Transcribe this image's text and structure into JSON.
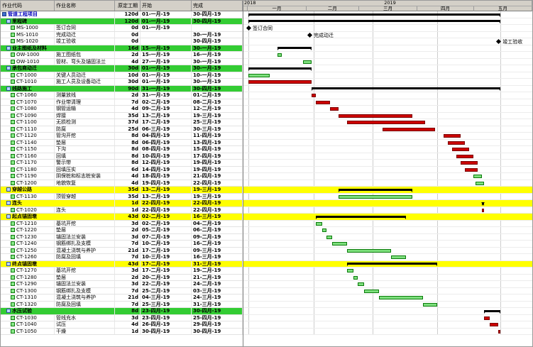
{
  "table": {
    "columns": [
      "作业代码",
      "作业名称",
      "原定工期",
      "开始",
      "完成"
    ]
  },
  "timeline": {
    "years": [
      {
        "label": "2018"
      },
      {
        "label": "2019"
      }
    ],
    "months": [
      {
        "label": "一月",
        "days": 31
      },
      {
        "label": "二月",
        "days": 28
      },
      {
        "label": "三月",
        "days": 31
      },
      {
        "label": "四月",
        "days": 30
      },
      {
        "label": "五月",
        "days": 31
      }
    ]
  },
  "colors": {
    "group_row": "#33cc33",
    "highlight_row": "#ffff00",
    "critical_bar": "#cc0000",
    "normal_bar": "#7ddf7d",
    "summary_bar": "#000000",
    "project_text": "#0000bb"
  },
  "rows": [
    {
      "type": "project",
      "name": "管道工程项目",
      "dur": "120d",
      "start": "01-一月-19",
      "finish": "30-四月-19",
      "bar": {
        "kind": "summary",
        "s": 0,
        "e": 119
      }
    },
    {
      "type": "group",
      "name": "里程碑",
      "dur": "120d",
      "start": "01-一月-19",
      "finish": "30-四月-19",
      "bar": {
        "kind": "summary",
        "s": 0,
        "e": 119
      }
    },
    {
      "type": "task",
      "id": "MS-1000",
      "name": "签订合同",
      "dur": "0d",
      "start": "01-一月-19",
      "finish": "",
      "bar": {
        "kind": "milestone",
        "s": 0,
        "label": "签订合同"
      }
    },
    {
      "type": "task",
      "id": "MS-1010",
      "name": "完成动迁",
      "dur": "0d",
      "start": "",
      "finish": "30-一月-19",
      "bar": {
        "kind": "milestone",
        "s": 29,
        "label": "完成动迁"
      }
    },
    {
      "type": "task",
      "id": "MS-1020",
      "name": "竣工验收",
      "dur": "0d",
      "start": "",
      "finish": "30-四月-19",
      "bar": {
        "kind": "milestone",
        "s": 119,
        "label": "竣工验收"
      }
    },
    {
      "type": "group",
      "name": "业主图纸及材料",
      "dur": "16d",
      "start": "15-一月-19",
      "finish": "30-一月-19",
      "bar": {
        "kind": "summary",
        "s": 14,
        "e": 29
      }
    },
    {
      "type": "task",
      "id": "OW-1000",
      "name": "施工图纸包",
      "dur": "2d",
      "start": "15-一月-19",
      "finish": "16-一月-19",
      "bar": {
        "kind": "bar",
        "color": "green",
        "s": 14,
        "e": 15
      }
    },
    {
      "type": "task",
      "id": "OW-1010",
      "name": "管材、弯头及锚固法兰",
      "dur": "4d",
      "start": "27-一月-19",
      "finish": "30-一月-19",
      "bar": {
        "kind": "bar",
        "color": "green",
        "s": 26,
        "e": 29
      }
    },
    {
      "type": "group",
      "name": "承包商动迁",
      "dur": "30d",
      "start": "01-一月-19",
      "finish": "30-一月-19",
      "bar": {
        "kind": "summary",
        "s": 0,
        "e": 29
      }
    },
    {
      "type": "task",
      "id": "CT-1000",
      "name": "关键人员动迁",
      "dur": "10d",
      "start": "01-一月-19",
      "finish": "10-一月-19",
      "bar": {
        "kind": "bar",
        "color": "green",
        "s": 0,
        "e": 9
      }
    },
    {
      "type": "task",
      "id": "CT-1010",
      "name": "施工人员及设备动迁",
      "dur": "30d",
      "start": "01-一月-19",
      "finish": "30-一月-19",
      "bar": {
        "kind": "bar",
        "color": "red",
        "s": 0,
        "e": 29
      }
    },
    {
      "type": "group",
      "name": "线路施工",
      "dur": "90d",
      "start": "31-一月-19",
      "finish": "30-四月-19",
      "bar": {
        "kind": "summary",
        "s": 30,
        "e": 119
      }
    },
    {
      "type": "task",
      "id": "CT-1060",
      "name": "测量放线",
      "dur": "2d",
      "start": "31-一月-19",
      "finish": "01-二月-19",
      "bar": {
        "kind": "bar",
        "color": "red",
        "s": 30,
        "e": 31
      }
    },
    {
      "type": "task",
      "id": "CT-1070",
      "name": "作业带清理",
      "dur": "7d",
      "start": "02-二月-19",
      "finish": "08-二月-19",
      "bar": {
        "kind": "bar",
        "color": "red",
        "s": 32,
        "e": 38
      }
    },
    {
      "type": "task",
      "id": "CT-1080",
      "name": "钢管运输",
      "dur": "4d",
      "start": "09-二月-19",
      "finish": "12-二月-19",
      "bar": {
        "kind": "bar",
        "color": "red",
        "s": 39,
        "e": 42
      }
    },
    {
      "type": "task",
      "id": "CT-1090",
      "name": "焊接",
      "dur": "35d",
      "start": "13-二月-19",
      "finish": "19-三月-19",
      "bar": {
        "kind": "bar",
        "color": "red",
        "s": 43,
        "e": 77
      }
    },
    {
      "type": "task",
      "id": "CT-1100",
      "name": "无损检测",
      "dur": "37d",
      "start": "17-二月-19",
      "finish": "25-三月-19",
      "bar": {
        "kind": "bar",
        "color": "red",
        "s": 47,
        "e": 83
      }
    },
    {
      "type": "task",
      "id": "CT-1110",
      "name": "防腐",
      "dur": "25d",
      "start": "06-三月-19",
      "finish": "30-三月-19",
      "bar": {
        "kind": "bar",
        "color": "red",
        "s": 64,
        "e": 88
      }
    },
    {
      "type": "task",
      "id": "CT-1120",
      "name": "管沟开挖",
      "dur": "8d",
      "start": "04-四月-19",
      "finish": "11-四月-19",
      "bar": {
        "kind": "bar",
        "color": "red",
        "s": 93,
        "e": 100
      }
    },
    {
      "type": "task",
      "id": "CT-1140",
      "name": "垫层",
      "dur": "8d",
      "start": "06-四月-19",
      "finish": "13-四月-19",
      "bar": {
        "kind": "bar",
        "color": "red",
        "s": 95,
        "e": 102
      }
    },
    {
      "type": "task",
      "id": "CT-1150",
      "name": "下沟",
      "dur": "8d",
      "start": "08-四月-19",
      "finish": "15-四月-19",
      "bar": {
        "kind": "bar",
        "color": "red",
        "s": 97,
        "e": 104
      }
    },
    {
      "type": "task",
      "id": "CT-1160",
      "name": "回填",
      "dur": "8d",
      "start": "10-四月-19",
      "finish": "17-四月-19",
      "bar": {
        "kind": "bar",
        "color": "red",
        "s": 99,
        "e": 106
      }
    },
    {
      "type": "task",
      "id": "CT-1170",
      "name": "警示带",
      "dur": "8d",
      "start": "12-四月-19",
      "finish": "19-四月-19",
      "bar": {
        "kind": "bar",
        "color": "red",
        "s": 101,
        "e": 108
      }
    },
    {
      "type": "task",
      "id": "CT-1180",
      "name": "回填压实",
      "dur": "6d",
      "start": "14-四月-19",
      "finish": "19-四月-19",
      "bar": {
        "kind": "bar",
        "color": "red",
        "s": 103,
        "e": 108
      }
    },
    {
      "type": "task",
      "id": "CT-1190",
      "name": "阴保桩和标志桩安装",
      "dur": "4d",
      "start": "18-四月-19",
      "finish": "21-四月-19",
      "bar": {
        "kind": "bar",
        "color": "green",
        "s": 107,
        "e": 110
      }
    },
    {
      "type": "task",
      "id": "CT-1200",
      "name": "地貌恢复",
      "dur": "4d",
      "start": "19-四月-19",
      "finish": "22-四月-19",
      "bar": {
        "kind": "bar",
        "color": "green",
        "s": 108,
        "e": 111
      }
    },
    {
      "type": "group",
      "highlight": true,
      "name": "穿越公路",
      "dur": "35d",
      "start": "13-二月-19",
      "finish": "19-三月-19",
      "bar": {
        "kind": "summary",
        "s": 43,
        "e": 77
      }
    },
    {
      "type": "task",
      "id": "CT-1130",
      "name": "顶管穿越",
      "dur": "35d",
      "start": "13-二月-19",
      "finish": "19-三月-19",
      "bar": {
        "kind": "bar",
        "color": "green",
        "s": 43,
        "e": 77
      }
    },
    {
      "type": "group",
      "highlight": true,
      "name": "连头",
      "dur": "1d",
      "start": "22-四月-19",
      "finish": "22-四月-19",
      "bar": {
        "kind": "summary",
        "s": 111,
        "e": 111
      }
    },
    {
      "type": "task",
      "id": "CT-1020",
      "name": "连头",
      "dur": "1d",
      "start": "22-四月-19",
      "finish": "22-四月-19",
      "bar": {
        "kind": "bar",
        "color": "red",
        "s": 111,
        "e": 111
      }
    },
    {
      "type": "group",
      "highlight": true,
      "name": "起点锚固墩",
      "dur": "43d",
      "start": "02-二月-19",
      "finish": "16-三月-19",
      "bar": {
        "kind": "summary",
        "s": 32,
        "e": 74
      }
    },
    {
      "type": "task",
      "id": "CT-1210",
      "name": "基坑开挖",
      "dur": "3d",
      "start": "02-二月-19",
      "finish": "04-二月-19",
      "bar": {
        "kind": "bar",
        "color": "green",
        "s": 32,
        "e": 34
      }
    },
    {
      "type": "task",
      "id": "CT-1220",
      "name": "垫层",
      "dur": "2d",
      "start": "05-二月-19",
      "finish": "06-二月-19",
      "bar": {
        "kind": "bar",
        "color": "green",
        "s": 35,
        "e": 36
      }
    },
    {
      "type": "task",
      "id": "CT-1230",
      "name": "锚固法兰安装",
      "dur": "3d",
      "start": "07-二月-19",
      "finish": "09-二月-19",
      "bar": {
        "kind": "bar",
        "color": "green",
        "s": 37,
        "e": 39
      }
    },
    {
      "type": "task",
      "id": "CT-1240",
      "name": "钢筋绑扎及支模",
      "dur": "7d",
      "start": "10-二月-19",
      "finish": "16-二月-19",
      "bar": {
        "kind": "bar",
        "color": "green",
        "s": 40,
        "e": 46
      }
    },
    {
      "type": "task",
      "id": "CT-1250",
      "name": "混凝土浇筑与养护",
      "dur": "21d",
      "start": "17-二月-19",
      "finish": "09-三月-19",
      "bar": {
        "kind": "bar",
        "color": "green",
        "s": 47,
        "e": 67
      }
    },
    {
      "type": "task",
      "id": "CT-1260",
      "name": "防腐及回填",
      "dur": "7d",
      "start": "10-三月-19",
      "finish": "16-三月-19",
      "bar": {
        "kind": "bar",
        "color": "green",
        "s": 68,
        "e": 74
      }
    },
    {
      "type": "group",
      "highlight": true,
      "name": "终点锚固墩",
      "dur": "43d",
      "start": "17-二月-19",
      "finish": "31-三月-19",
      "bar": {
        "kind": "summary",
        "s": 47,
        "e": 89
      }
    },
    {
      "type": "task",
      "id": "CT-1270",
      "name": "基坑开挖",
      "dur": "3d",
      "start": "17-二月-19",
      "finish": "19-二月-19",
      "bar": {
        "kind": "bar",
        "color": "green",
        "s": 47,
        "e": 49
      }
    },
    {
      "type": "task",
      "id": "CT-1280",
      "name": "垫层",
      "dur": "2d",
      "start": "20-二月-19",
      "finish": "21-二月-19",
      "bar": {
        "kind": "bar",
        "color": "green",
        "s": 50,
        "e": 51
      }
    },
    {
      "type": "task",
      "id": "CT-1290",
      "name": "锚固法兰安装",
      "dur": "3d",
      "start": "22-二月-19",
      "finish": "24-二月-19",
      "bar": {
        "kind": "bar",
        "color": "green",
        "s": 52,
        "e": 54
      }
    },
    {
      "type": "task",
      "id": "CT-1300",
      "name": "钢筋绑扎及支模",
      "dur": "7d",
      "start": "25-二月-19",
      "finish": "03-三月-19",
      "bar": {
        "kind": "bar",
        "color": "green",
        "s": 55,
        "e": 61
      }
    },
    {
      "type": "task",
      "id": "CT-1310",
      "name": "混凝土浇筑与养护",
      "dur": "21d",
      "start": "04-三月-19",
      "finish": "24-三月-19",
      "bar": {
        "kind": "bar",
        "color": "green",
        "s": 62,
        "e": 82
      }
    },
    {
      "type": "task",
      "id": "CT-1320",
      "name": "防腐及回填",
      "dur": "7d",
      "start": "25-三月-19",
      "finish": "31-三月-19",
      "bar": {
        "kind": "bar",
        "color": "green",
        "s": 83,
        "e": 89
      }
    },
    {
      "type": "group",
      "name": "水压试验",
      "dur": "8d",
      "start": "23-四月-19",
      "finish": "30-四月-19",
      "bar": {
        "kind": "summary",
        "s": 112,
        "e": 119
      }
    },
    {
      "type": "task",
      "id": "CT-1030",
      "name": "管线充水",
      "dur": "3d",
      "start": "23-四月-19",
      "finish": "25-四月-19",
      "bar": {
        "kind": "bar",
        "color": "red",
        "s": 112,
        "e": 114
      }
    },
    {
      "type": "task",
      "id": "CT-1040",
      "name": "试压",
      "dur": "4d",
      "start": "26-四月-19",
      "finish": "29-四月-19",
      "bar": {
        "kind": "bar",
        "color": "red",
        "s": 115,
        "e": 118
      }
    },
    {
      "type": "task",
      "id": "CT-1050",
      "name": "干燥",
      "dur": "1d",
      "start": "30-四月-19",
      "finish": "30-四月-19",
      "bar": {
        "kind": "bar",
        "color": "red",
        "s": 119,
        "e": 119
      }
    }
  ]
}
